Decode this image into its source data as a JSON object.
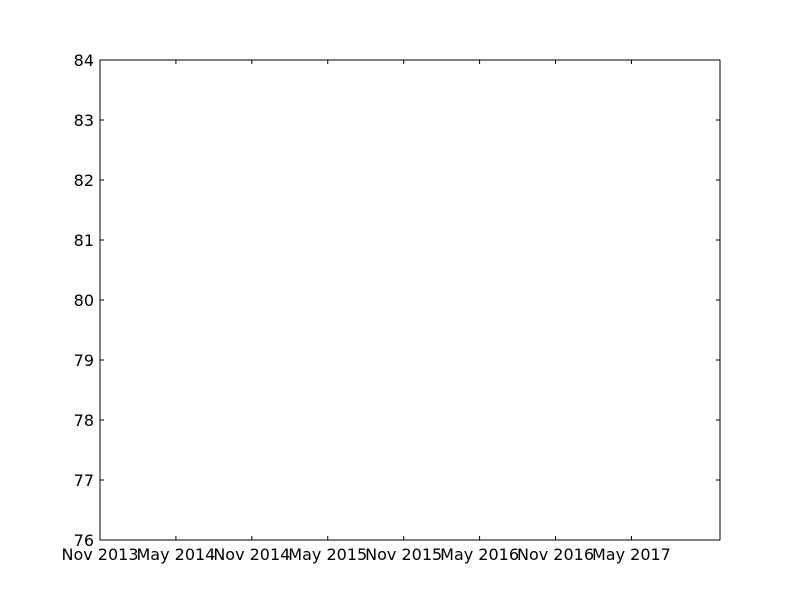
{
  "chart_data": {
    "type": "line",
    "title": "",
    "xlabel": "",
    "ylabel": "",
    "x_axis": {
      "kind": "date",
      "range": [
        "2013-11",
        "2017-12"
      ],
      "ticks": [
        {
          "value": "2013-11",
          "label": "Nov 2013"
        },
        {
          "value": "2014-05",
          "label": "May 2014"
        },
        {
          "value": "2014-11",
          "label": "Nov 2014"
        },
        {
          "value": "2015-05",
          "label": "May 2015"
        },
        {
          "value": "2015-11",
          "label": "Nov 2015"
        },
        {
          "value": "2016-05",
          "label": "May 2016"
        },
        {
          "value": "2016-11",
          "label": "Nov 2016"
        },
        {
          "value": "2017-05",
          "label": "May 2017"
        }
      ]
    },
    "y_axis": {
      "range": [
        76,
        84
      ],
      "ticks": [
        {
          "value": 76,
          "label": "76"
        },
        {
          "value": 77,
          "label": "77"
        },
        {
          "value": 78,
          "label": "78"
        },
        {
          "value": 79,
          "label": "79"
        },
        {
          "value": 80,
          "label": "80"
        },
        {
          "value": 81,
          "label": "81"
        },
        {
          "value": 82,
          "label": "82"
        },
        {
          "value": 83,
          "label": "83"
        },
        {
          "value": 84,
          "label": "84"
        }
      ]
    },
    "grid": false,
    "series": []
  },
  "colors": {
    "axis": "#000000",
    "background": "#ffffff"
  }
}
